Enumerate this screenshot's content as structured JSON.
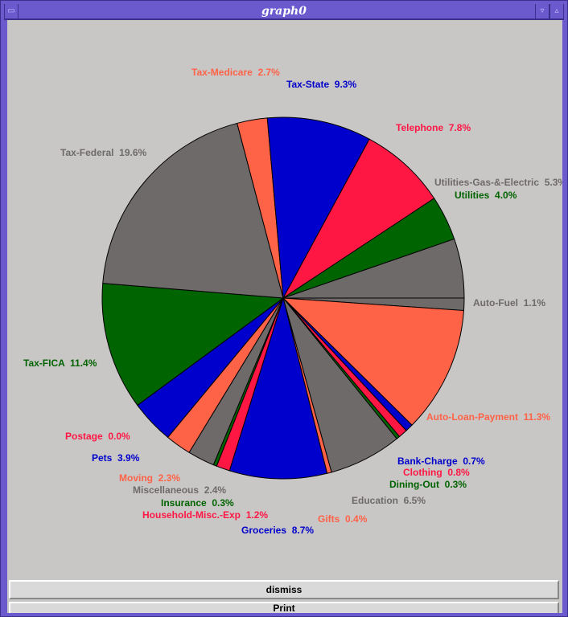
{
  "window": {
    "title": "graph0"
  },
  "buttons": {
    "dismiss": "dismiss",
    "print": "Print"
  },
  "colors": {
    "gray": "#6e6a6a",
    "tomato": "#ff6347",
    "blue": "#0000cc",
    "red": "#ff1744",
    "green": "#006400",
    "background": "#c9c6c6",
    "titlebar": "#6a5acd"
  },
  "chart_data": {
    "type": "pie",
    "start": "3 o'clock, clockwise",
    "slices": [
      {
        "name": "Auto-Fuel",
        "pct": "1.1%",
        "value": 1.1,
        "color": "#6e6a6a"
      },
      {
        "name": "Auto-Loan-Payment",
        "pct": "11.3%",
        "value": 11.3,
        "color": "#ff6347"
      },
      {
        "name": "Bank-Charge",
        "pct": "0.7%",
        "value": 0.7,
        "color": "#0000cc"
      },
      {
        "name": "Clothing",
        "pct": "0.8%",
        "value": 0.8,
        "color": "#ff1744"
      },
      {
        "name": "Dining-Out",
        "pct": "0.3%",
        "value": 0.3,
        "color": "#006400"
      },
      {
        "name": "Education",
        "pct": "6.5%",
        "value": 6.5,
        "color": "#6e6a6a"
      },
      {
        "name": "Gifts",
        "pct": "0.4%",
        "value": 0.4,
        "color": "#ff6347"
      },
      {
        "name": "Groceries",
        "pct": "8.7%",
        "value": 8.7,
        "color": "#0000cc"
      },
      {
        "name": "Household-Misc.-Exp",
        "pct": "1.2%",
        "value": 1.2,
        "color": "#ff1744"
      },
      {
        "name": "Insurance",
        "pct": "0.3%",
        "value": 0.3,
        "color": "#006400"
      },
      {
        "name": "Miscellaneous",
        "pct": "2.4%",
        "value": 2.4,
        "color": "#6e6a6a"
      },
      {
        "name": "Moving",
        "pct": "2.3%",
        "value": 2.3,
        "color": "#ff6347"
      },
      {
        "name": "Pets",
        "pct": "3.9%",
        "value": 3.9,
        "color": "#0000cc"
      },
      {
        "name": "Postage",
        "pct": "0.0%",
        "value": 0.0,
        "color": "#ff1744"
      },
      {
        "name": "Tax-FICA",
        "pct": "11.4%",
        "value": 11.4,
        "color": "#006400"
      },
      {
        "name": "Tax-Federal",
        "pct": "19.6%",
        "value": 19.6,
        "color": "#6e6a6a"
      },
      {
        "name": "Tax-Medicare",
        "pct": "2.7%",
        "value": 2.7,
        "color": "#ff6347"
      },
      {
        "name": "Tax-State",
        "pct": "9.3%",
        "value": 9.3,
        "color": "#0000cc"
      },
      {
        "name": "Telephone",
        "pct": "7.8%",
        "value": 7.8,
        "color": "#ff1744"
      },
      {
        "name": "Utilities",
        "pct": "4.0%",
        "value": 4.0,
        "color": "#006400"
      },
      {
        "name": "Utilities-Gas-&-Electric",
        "pct": "5.3%",
        "value": 5.3,
        "color": "#6e6a6a"
      }
    ]
  }
}
